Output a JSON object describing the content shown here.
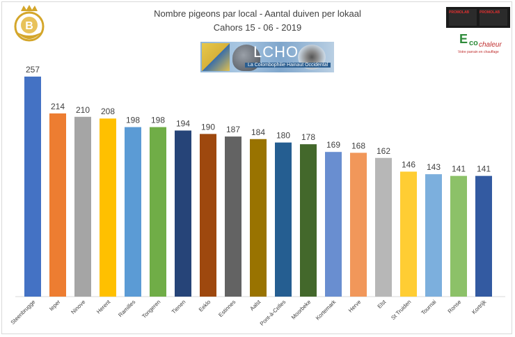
{
  "header": {
    "title_line1": "Nombre pigeons par local - Aantal duiven per lokaal",
    "title_line2": "Cahors 15 - 06 - 2019"
  },
  "logos": {
    "lcho_name": "LCHO",
    "lcho_subtitle": "La Colombophilie Hainaut Occidental",
    "eco_text_1": "E",
    "eco_text_2": "co",
    "eco_text_3": "chaleur",
    "eco_tagline": "Votre parrain en chauffage",
    "dark_logo_text_1": "PROMOLAB",
    "dark_logo_text_2": "PROMOLAB",
    "bicon_letter": "B"
  },
  "chart_data": {
    "type": "bar",
    "title": "Nombre pigeons par local - Aantal duiven per lokaal",
    "subtitle": "Cahors 15 - 06 - 2019",
    "xlabel": "",
    "ylabel": "",
    "ylim": [
      0,
      257
    ],
    "grid": false,
    "legend": "none",
    "categories": [
      "Steenbrugge",
      "Ieper",
      "Ninove",
      "Herent",
      "Ramilles",
      "Tongeren",
      "Tienen",
      "Eeklo",
      "Estinnes",
      "Aalst",
      "Pont-à-Celles",
      "Moorbeke",
      "Kortemark",
      "Herve",
      "Elst",
      "St Truiden",
      "Tournai",
      "Ronse",
      "Kortrijk"
    ],
    "values": [
      257,
      214,
      210,
      208,
      198,
      198,
      194,
      190,
      187,
      184,
      180,
      178,
      169,
      168,
      162,
      146,
      143,
      141,
      141
    ],
    "colors": [
      "#4472c4",
      "#ed7d31",
      "#a5a5a5",
      "#ffc000",
      "#5b9bd5",
      "#70ad47",
      "#264478",
      "#9e480e",
      "#636363",
      "#997300",
      "#255e91",
      "#43682b",
      "#698ed0",
      "#f1975a",
      "#b7b7b7",
      "#ffcd33",
      "#7cafdd",
      "#8cc168",
      "#335aa1"
    ]
  }
}
